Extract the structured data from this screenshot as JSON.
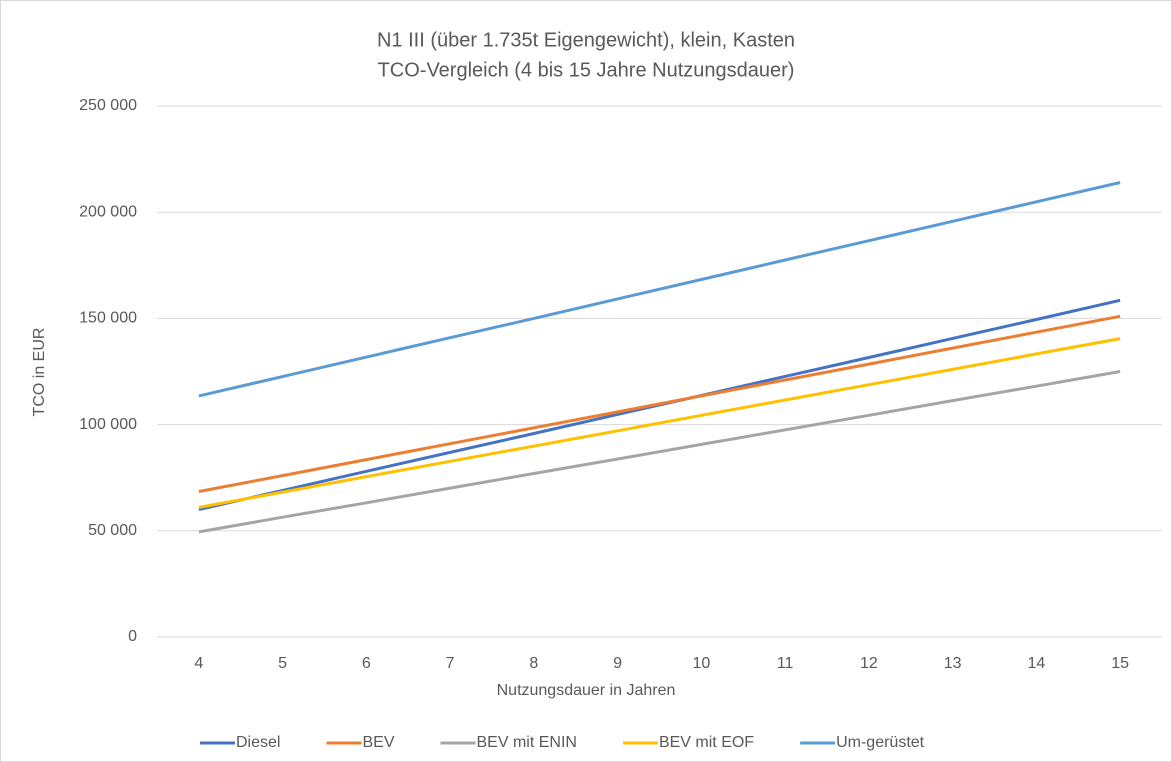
{
  "chart_data": {
    "type": "line",
    "title": "N1 III (über 1.735t Eigengewicht), klein, Kasten",
    "subtitle": "TCO-Vergleich  (4 bis 15 Jahre Nutzungsdauer)",
    "x_label": "Nutzungsdauer  in Jahren",
    "y_label": "TCO in EUR",
    "x": [
      4,
      5,
      6,
      7,
      8,
      9,
      10,
      11,
      12,
      13,
      14,
      15
    ],
    "xlim": [
      3.5,
      15.5
    ],
    "xticks": [
      4,
      5,
      6,
      7,
      8,
      9,
      10,
      11,
      12,
      13,
      14,
      15
    ],
    "ylim": [
      0,
      250000
    ],
    "yticks": [
      0,
      {
        "value": 50000,
        "label": "50 000"
      },
      {
        "value": 100000,
        "label": "100 000"
      },
      {
        "value": 150000,
        "label": "150 000"
      },
      {
        "value": 200000,
        "label": "200 000"
      },
      {
        "value": 250000,
        "label": "250 000"
      }
    ],
    "grid": true,
    "legend": "bottom",
    "series": [
      {
        "name": "Diesel",
        "color": "#4472c4",
        "values": [
          60000,
          69000,
          78000,
          86900,
          95800,
          104800,
          113700,
          122700,
          131600,
          140600,
          149500,
          158500
        ]
      },
      {
        "name": "BEV",
        "color": "#ed7d31",
        "values": [
          68500,
          76000,
          83500,
          91000,
          98500,
          106000,
          113500,
          121000,
          128500,
          136000,
          143500,
          151000
        ]
      },
      {
        "name": "BEV mit ENIN",
        "color": "#a5a5a5",
        "values": [
          49500,
          56400,
          63200,
          70100,
          77000,
          83800,
          90700,
          97500,
          104400,
          111300,
          118100,
          125000
        ]
      },
      {
        "name": "BEV mit EOF",
        "color": "#ffc000",
        "values": [
          61000,
          68200,
          75500,
          82700,
          89900,
          97100,
          104400,
          111600,
          118800,
          126000,
          133300,
          140500
        ]
      },
      {
        "name": "Um-gerüstet",
        "color": "#5b9bd5",
        "values": [
          113500,
          122600,
          131800,
          140900,
          150000,
          159200,
          168300,
          177500,
          186600,
          195700,
          204900,
          214000
        ]
      }
    ]
  }
}
